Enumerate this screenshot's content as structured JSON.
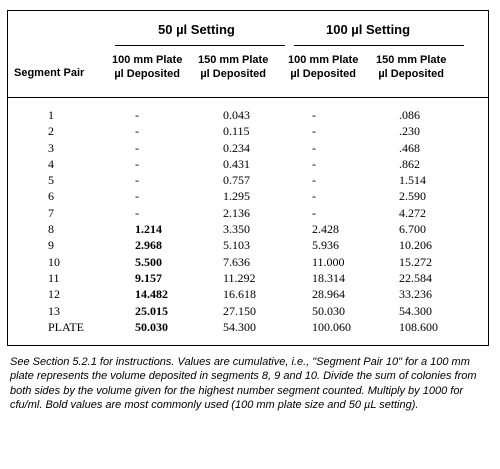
{
  "table": {
    "group_headers": [
      "50 µl Setting",
      "100 µl Setting"
    ],
    "columns": [
      "Segment Pair",
      [
        "100 mm Plate",
        "µl Deposited"
      ],
      [
        "150 mm Plate",
        "µl Deposited"
      ],
      [
        "100 mm Plate",
        "µl Deposited"
      ],
      [
        "150 mm Plate",
        "µl Deposited"
      ]
    ],
    "rows": [
      [
        "1",
        "-",
        "0.043",
        "-",
        ".086"
      ],
      [
        "2",
        "-",
        "0.115",
        "-",
        ".230"
      ],
      [
        "3",
        "-",
        "0.234",
        "-",
        ".468"
      ],
      [
        "4",
        "-",
        "0.431",
        "-",
        ".862"
      ],
      [
        "5",
        "-",
        "0.757",
        "-",
        "1.514"
      ],
      [
        "6",
        "-",
        "1.295",
        "-",
        "2.590"
      ],
      [
        "7",
        "-",
        "2.136",
        "-",
        "4.272"
      ],
      [
        "8",
        "1.214",
        "3.350",
        "2.428",
        "6.700"
      ],
      [
        "9",
        "2.968",
        "5.103",
        "5.936",
        "10.206"
      ],
      [
        "10",
        "5.500",
        "7.636",
        "11.000",
        "15.272"
      ],
      [
        "11",
        "9.157",
        "11.292",
        "18.314",
        "22.584"
      ],
      [
        "12",
        "14.482",
        "16.618",
        "28.964",
        "33.236"
      ],
      [
        "13",
        "25.015",
        "27.150",
        "50.030",
        "54.300"
      ],
      [
        "PLATE",
        "50.030",
        "54.300",
        "100.060",
        "108.600"
      ]
    ],
    "bold_column_index": 1,
    "bold_from_row": 7
  },
  "note": "See Section 5.2.1 for instructions. Values are cumulative, i.e., \"Segment Pair 10\" for a 100 mm plate represents the volume deposited in segments 8, 9 and 10. Divide the sum of colonies from both sides by the volume given for the highest number segment counted. Multiply by 1000 for cfu/ml. Bold values are most commonly used (100 mm plate size and 50 µL setting)."
}
